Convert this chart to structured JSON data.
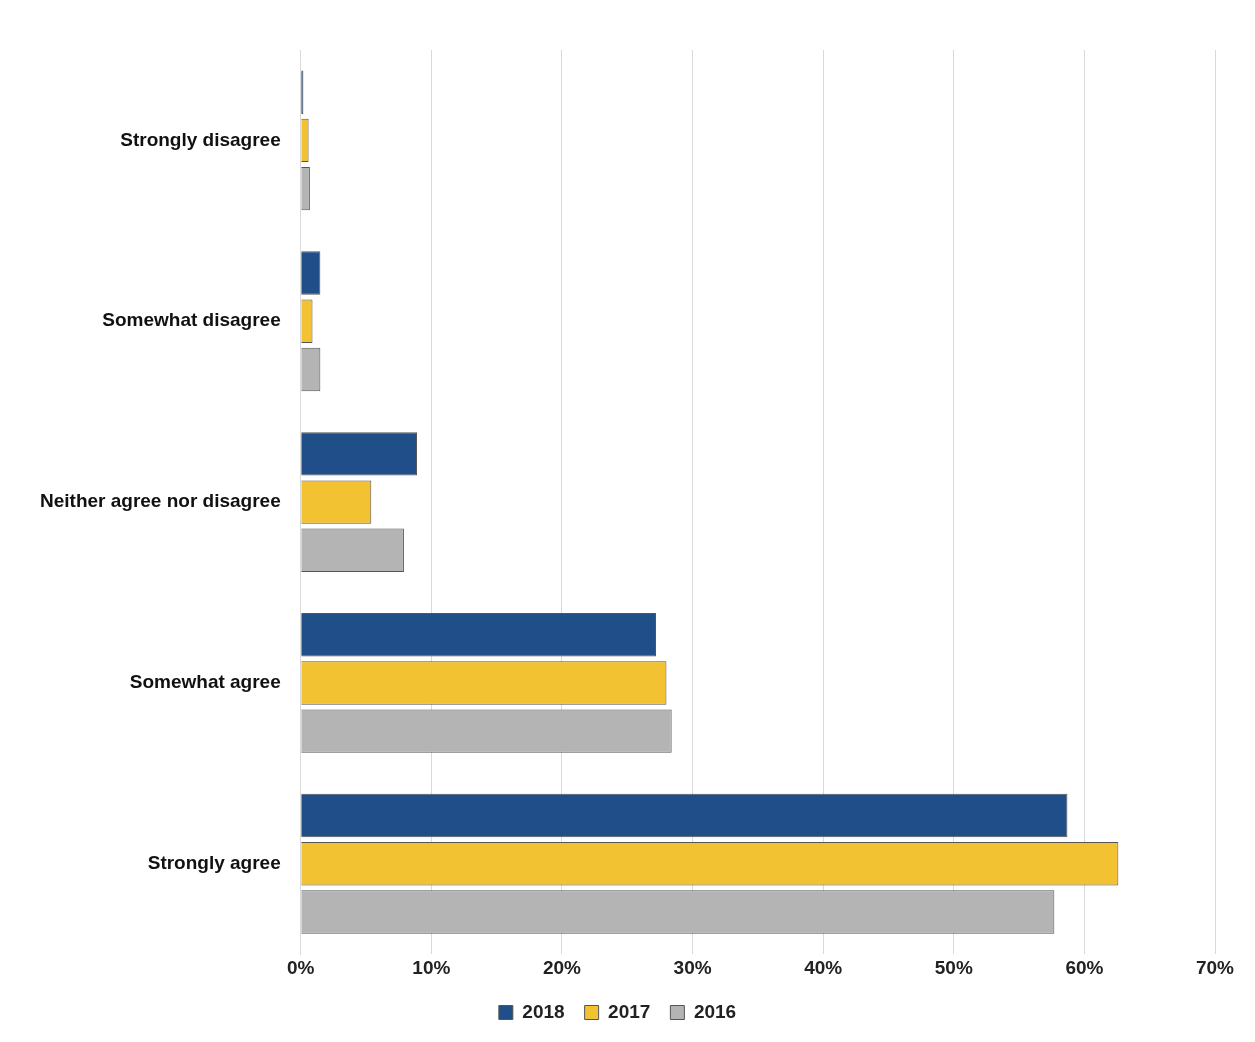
{
  "chart_data": {
    "type": "bar",
    "orientation": "horizontal",
    "categories": [
      "Strongly disagree",
      "Somewhat disagree",
      "Neither agree nor disagree",
      "Somewhat agree",
      "Strongly agree"
    ],
    "series": [
      {
        "name": "2018",
        "color": "#1f4e89",
        "values": [
          0.2,
          1.5,
          8.9,
          27.2,
          58.7
        ]
      },
      {
        "name": "2017",
        "color": "#f2c232",
        "values": [
          0.6,
          0.9,
          5.4,
          28.0,
          62.6
        ]
      },
      {
        "name": "2016",
        "color": "#b4b4b4",
        "values": [
          0.7,
          1.5,
          7.9,
          28.4,
          57.7
        ]
      }
    ],
    "xlim": [
      0,
      70
    ],
    "xticks": [
      {
        "value": 0,
        "label": "0%"
      },
      {
        "value": 10,
        "label": "10%"
      },
      {
        "value": 20,
        "label": "20%"
      },
      {
        "value": 30,
        "label": "30%"
      },
      {
        "value": 40,
        "label": "40%"
      },
      {
        "value": 50,
        "label": "50%"
      },
      {
        "value": 60,
        "label": "60%"
      },
      {
        "value": 70,
        "label": "70%"
      }
    ],
    "grid": "x",
    "legend": "bottom"
  }
}
